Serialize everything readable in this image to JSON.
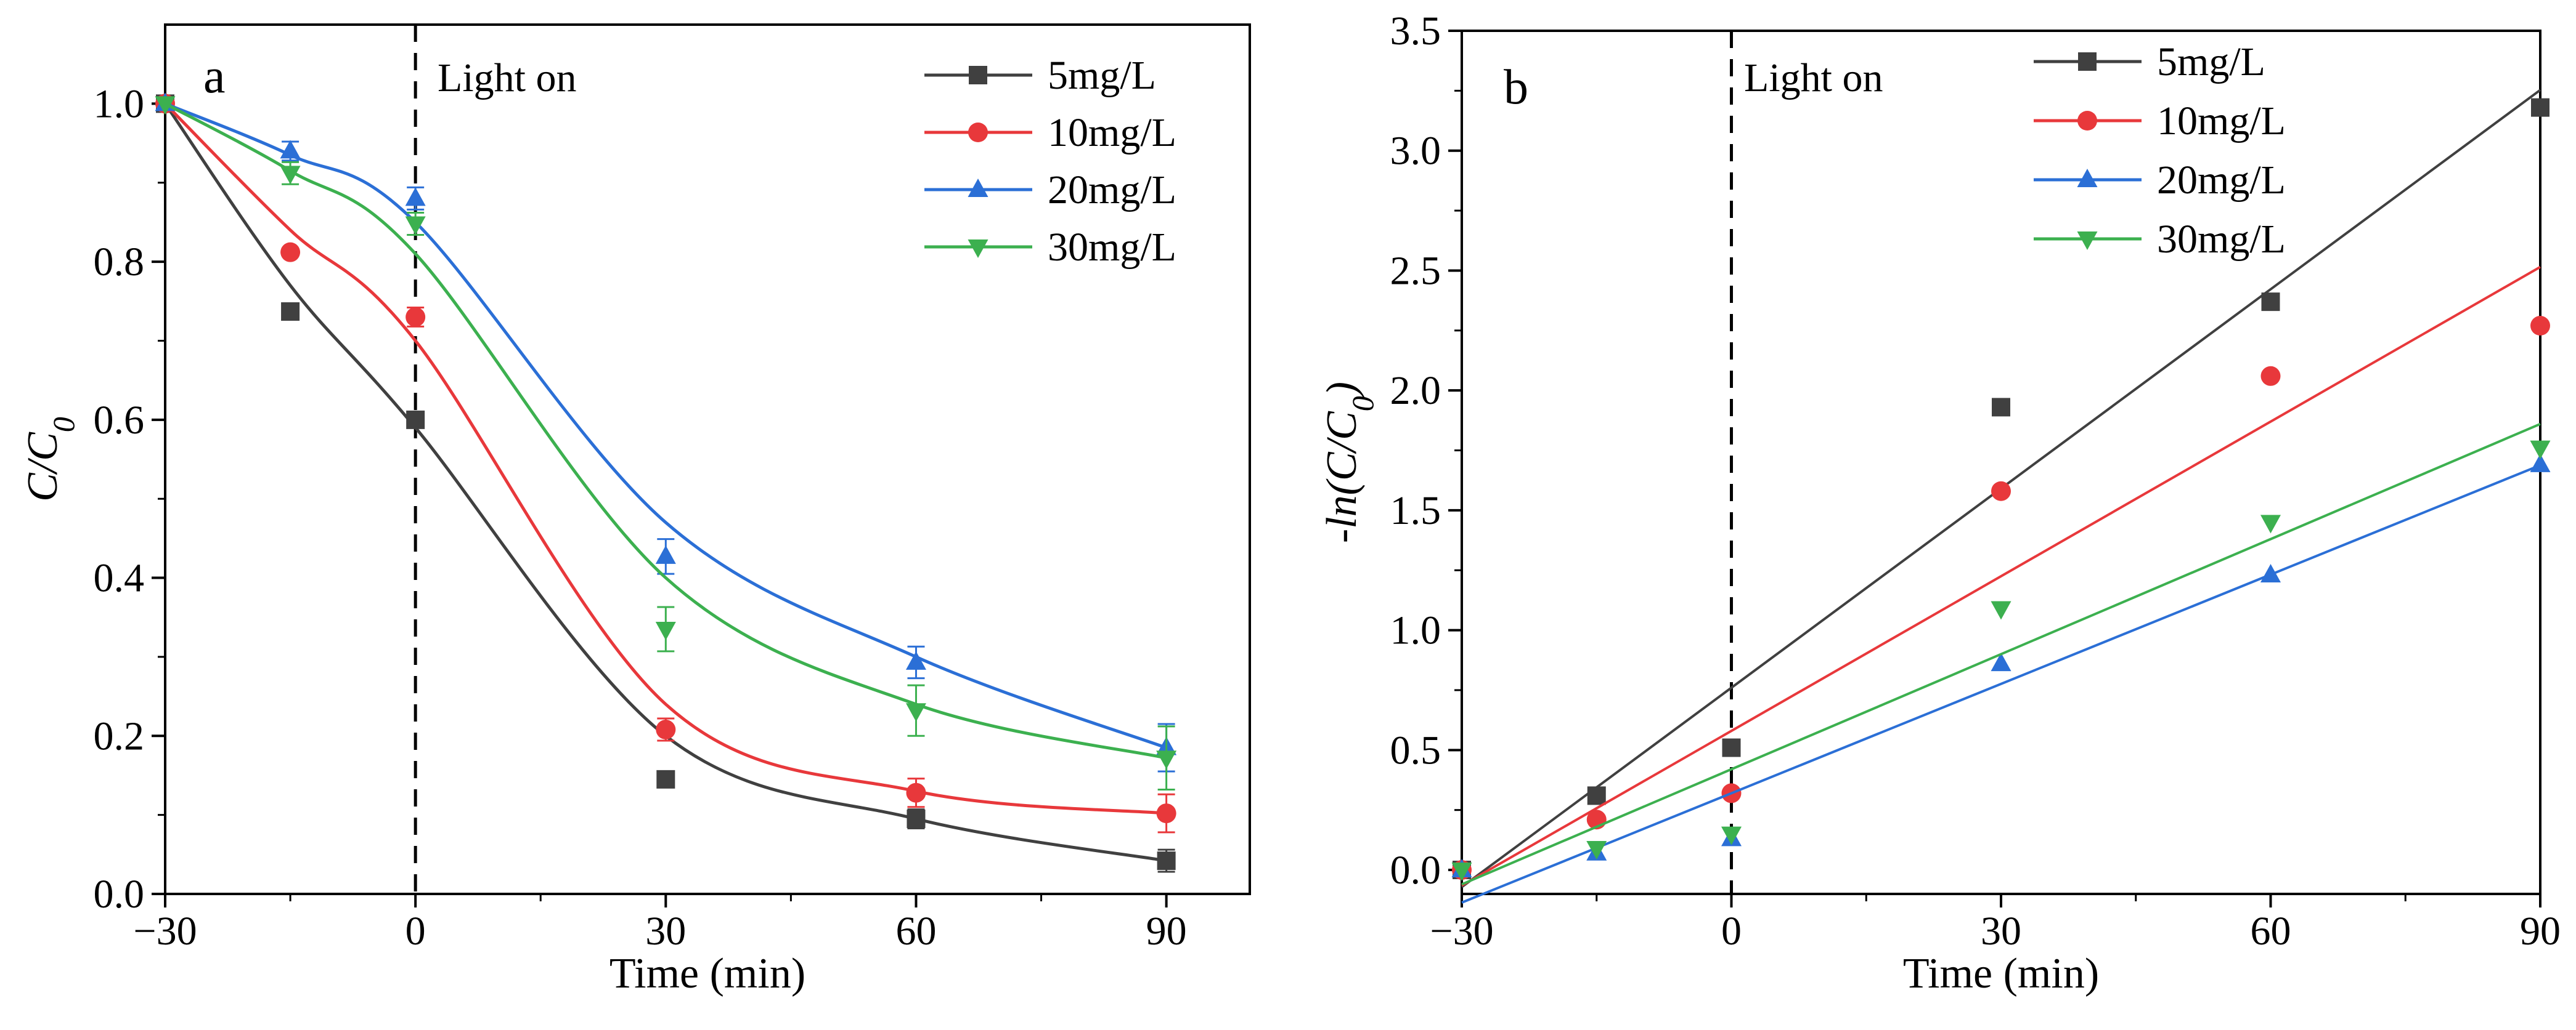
{
  "chart_data": [
    {
      "panel": "a",
      "type": "line",
      "annotation": "Light on",
      "xlabel": "Time (min)",
      "ylabel_parts": [
        "C/C",
        "0"
      ],
      "xlim": [
        -30,
        100
      ],
      "ylim": [
        0,
        1.1
      ],
      "xticks": [
        -30,
        0,
        30,
        60,
        90
      ],
      "xtick_labels": [
        "−30",
        "0",
        "30",
        "60",
        "90"
      ],
      "yticks": [
        0,
        0.2,
        0.4,
        0.6,
        0.8,
        1.0
      ],
      "ytick_labels": [
        "0.0",
        "0.2",
        "0.4",
        "0.6",
        "0.8",
        "1.0"
      ],
      "light_on_x": 0,
      "x": [
        -30,
        -15,
        0,
        30,
        60,
        90
      ],
      "series": [
        {
          "name": "5mg/L",
          "color": "#404040",
          "marker": "square",
          "values": [
            1.0,
            0.737,
            0.6,
            0.145,
            0.095,
            0.042
          ],
          "errors": [
            0,
            0,
            0,
            0,
            0.012,
            0.014
          ],
          "curve": [
            1.0,
            0.77,
            0.59,
            0.2,
            0.095,
            0.042
          ]
        },
        {
          "name": "10mg/L",
          "color": "#e8383b",
          "marker": "circle",
          "values": [
            1.0,
            0.812,
            0.73,
            0.208,
            0.128,
            0.102
          ],
          "errors": [
            0,
            0,
            0.012,
            0.014,
            0.018,
            0.024
          ],
          "curve": [
            1.0,
            0.84,
            0.7,
            0.24,
            0.13,
            0.102
          ]
        },
        {
          "name": "20mg/L",
          "color": "#2b6fd6",
          "marker": "triangle-up",
          "values": [
            1.0,
            0.94,
            0.88,
            0.427,
            0.293,
            0.185
          ],
          "errors": [
            0,
            0.012,
            0.014,
            0.022,
            0.02,
            0.03
          ],
          "curve": [
            1.0,
            0.935,
            0.85,
            0.47,
            0.3,
            0.185
          ]
        },
        {
          "name": "30mg/L",
          "color": "#3cb04f",
          "marker": "triangle-down",
          "values": [
            1.0,
            0.912,
            0.848,
            0.335,
            0.232,
            0.172
          ],
          "errors": [
            0,
            0.014,
            0.014,
            0.028,
            0.032,
            0.04
          ],
          "curve": [
            1.0,
            0.915,
            0.81,
            0.4,
            0.24,
            0.172
          ]
        }
      ],
      "legend_position": "top-right"
    },
    {
      "panel": "b",
      "type": "scatter",
      "annotation": "Light on",
      "xlabel": "Time (min)",
      "ylabel_parts": [
        "-ln(C/C",
        "0",
        ")"
      ],
      "xlim": [
        -30,
        90
      ],
      "ylim": [
        -0.1,
        3.5
      ],
      "xticks": [
        -30,
        0,
        30,
        60,
        90
      ],
      "xtick_labels": [
        "−30",
        "0",
        "30",
        "60",
        "90"
      ],
      "yticks": [
        0,
        0.5,
        1.0,
        1.5,
        2.0,
        2.5,
        3.0,
        3.5
      ],
      "ytick_labels": [
        "0.0",
        "0.5",
        "1.0",
        "1.5",
        "2.0",
        "2.5",
        "3.0",
        "3.5"
      ],
      "light_on_x": 0,
      "x": [
        -30,
        -15,
        0,
        30,
        60,
        90
      ],
      "series": [
        {
          "name": "5mg/L",
          "color": "#404040",
          "marker": "square",
          "values": [
            0.0,
            0.31,
            0.51,
            1.93,
            2.37,
            3.18
          ],
          "fit": {
            "slope": 0.0277,
            "intercept": 0.76
          }
        },
        {
          "name": "10mg/L",
          "color": "#e8383b",
          "marker": "circle",
          "values": [
            0.0,
            0.21,
            0.32,
            1.58,
            2.06,
            2.27
          ],
          "fit": {
            "slope": 0.0215,
            "intercept": 0.58
          }
        },
        {
          "name": "20mg/L",
          "color": "#2b6fd6",
          "marker": "triangle-up",
          "values": [
            0.0,
            0.07,
            0.13,
            0.86,
            1.23,
            1.69
          ],
          "fit": {
            "slope": 0.0152,
            "intercept": 0.32
          }
        },
        {
          "name": "30mg/L",
          "color": "#3cb04f",
          "marker": "triangle-down",
          "values": [
            0.0,
            0.09,
            0.15,
            1.09,
            1.45,
            1.76
          ],
          "fit": {
            "slope": 0.016,
            "intercept": 0.42
          }
        }
      ],
      "legend_position": "top-right"
    }
  ]
}
